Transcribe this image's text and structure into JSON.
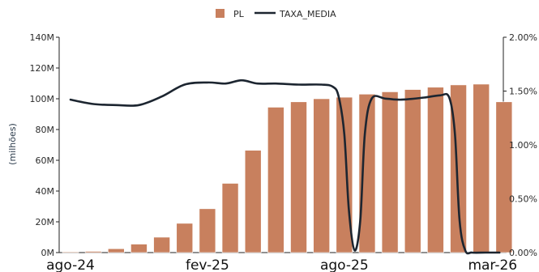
{
  "chart_data": {
    "type": "bar+line",
    "legend": {
      "placement": "top-center",
      "entries": [
        {
          "label": "PL",
          "kind": "bar",
          "color": "#c8805e"
        },
        {
          "label": "TAXA_MEDIA",
          "kind": "line",
          "color": "#1c2530"
        }
      ]
    },
    "y_left": {
      "label": "(milhões)",
      "range": [
        0,
        140
      ],
      "ticks": [
        0,
        20,
        40,
        60,
        80,
        100,
        120,
        140
      ],
      "tick_labels": [
        "0M",
        "20M",
        "40M",
        "60M",
        "80M",
        "100M",
        "120M",
        "140M"
      ]
    },
    "y_right": {
      "range": [
        0,
        2.0
      ],
      "ticks": [
        0,
        0.5,
        1.0,
        1.5,
        2.0
      ],
      "tick_labels": [
        "0.00%",
        "0.50%",
        "1.00%",
        "1.50%",
        "2.00%"
      ]
    },
    "x": {
      "tick_labels": [
        "ago-24",
        "fev-25",
        "ago-25",
        "mar-26"
      ],
      "tick_index": [
        0,
        6,
        12,
        18.5
      ]
    },
    "bars": {
      "name": "PL",
      "color": "#c8805e",
      "values": [
        0.5,
        0.8,
        2.5,
        5.5,
        10,
        19,
        28.5,
        45,
        66.5,
        94.5,
        98,
        100,
        101,
        103,
        104.5,
        106,
        107.5,
        109,
        109.5,
        98
      ]
    },
    "line": {
      "name": "TAXA_MEDIA",
      "color": "#1c2530",
      "points": [
        [
          0,
          1.42
        ],
        [
          1,
          1.38
        ],
        [
          2,
          1.37
        ],
        [
          3,
          1.37
        ],
        [
          4,
          1.45
        ],
        [
          5,
          1.56
        ],
        [
          6,
          1.58
        ],
        [
          6.8,
          1.57
        ],
        [
          7.5,
          1.6
        ],
        [
          8.2,
          1.57
        ],
        [
          9,
          1.57
        ],
        [
          10,
          1.56
        ],
        [
          11,
          1.56
        ],
        [
          11.5,
          1.54
        ],
        [
          11.75,
          1.45
        ],
        [
          12,
          1.1
        ],
        [
          12.2,
          0.4
        ],
        [
          12.45,
          0.02
        ],
        [
          12.7,
          0.3
        ],
        [
          12.9,
          1.1
        ],
        [
          13.2,
          1.43
        ],
        [
          13.8,
          1.43
        ],
        [
          14.5,
          1.42
        ],
        [
          15.5,
          1.44
        ],
        [
          16.2,
          1.46
        ],
        [
          16.6,
          1.44
        ],
        [
          16.85,
          1.1
        ],
        [
          17.05,
          0.3
        ],
        [
          17.3,
          0.02
        ],
        [
          17.6,
          0.0
        ],
        [
          18.2,
          0.0
        ],
        [
          18.8,
          0.0
        ]
      ]
    },
    "grid": false
  }
}
